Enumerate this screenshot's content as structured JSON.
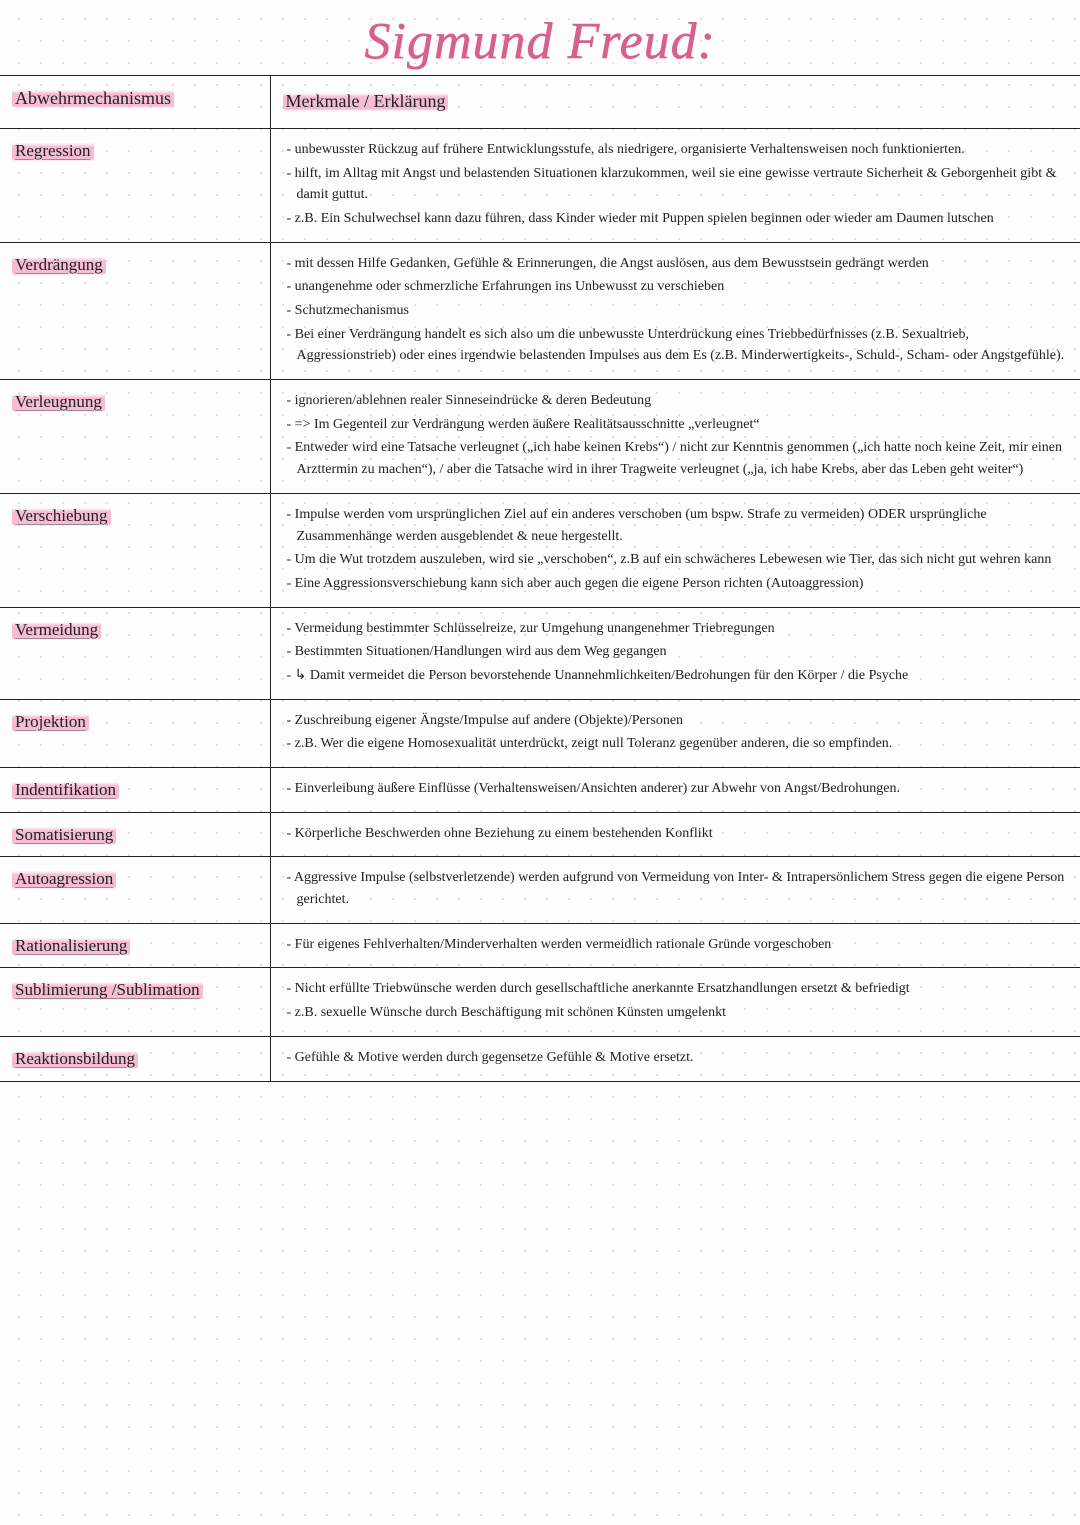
{
  "title": "Sigmund Freud:",
  "headers": {
    "left": "Abwehrmechanismus",
    "right": "Merkmale / Erklärung"
  },
  "rows": [
    {
      "term": "Regression",
      "points": [
        "unbewusster Rückzug auf frühere Entwicklungsstufe, als niedrigere, organisierte Verhaltensweisen noch funktionierten.",
        "hilft, im Alltag mit Angst und belastenden Situationen klarzukommen, weil sie eine gewisse vertraute Sicherheit & Geborgenheit gibt & damit guttut.",
        "z.B. Ein Schulwechsel kann dazu führen, dass Kinder wieder mit Puppen spielen beginnen oder wieder am Daumen lutschen"
      ]
    },
    {
      "term": "Verdrängung",
      "points": [
        "mit dessen Hilfe Gedanken, Gefühle & Erinnerungen, die Angst auslösen, aus dem Bewusstsein gedrängt werden",
        "unangenehme oder schmerzliche Erfahrungen ins Unbewusst zu verschieben",
        "Schutzmechanismus",
        "Bei einer Verdrängung handelt es sich also um die unbewusste Unterdrückung eines Triebbedürfnisses (z.B. Sexualtrieb, Aggressionstrieb) oder eines irgendwie belastenden Impulses aus dem Es (z.B. Minderwertigkeits-, Schuld-, Scham- oder Angstgefühle)."
      ]
    },
    {
      "term": "Verleugnung",
      "points": [
        "ignorieren/ablehnen realer Sinneseindrücke & deren Bedeutung",
        "=> Im Gegenteil zur Verdrängung werden äußere Realitätsausschnitte „verleugnet“",
        "Entweder wird eine Tatsache verleugnet („ich habe keinen Krebs“) / nicht zur Kenntnis genommen („ich hatte noch keine Zeit, mir einen Arzttermin zu machen“), / aber die Tatsache wird in ihrer Tragweite verleugnet („ja, ich habe Krebs, aber das Leben geht weiter“)"
      ]
    },
    {
      "term": "Verschiebung",
      "points": [
        "Impulse werden vom ursprünglichen Ziel auf ein anderes verschoben (um bspw. Strafe zu vermeiden) ODER ursprüngliche Zusammenhänge werden ausgeblendet & neue hergestellt.",
        "Um die Wut trotzdem auszuleben, wird sie „verschoben“, z.B auf ein schwächeres Lebewesen wie Tier, das sich nicht gut wehren kann",
        "Eine Aggressionsverschiebung kann sich aber auch gegen die eigene Person richten (Autoaggression)"
      ]
    },
    {
      "term": "Vermeidung",
      "points": [
        "Vermeidung bestimmter Schlüsselreize, zur Umgehung unangenehmer Triebregungen",
        "Bestimmten Situationen/Handlungen wird aus dem Weg gegangen",
        "↳ Damit vermeidet die Person bevorstehende Unannehmlichkeiten/Bedrohungen für den Körper / die Psyche"
      ]
    },
    {
      "term": "Projektion",
      "points": [
        "Zuschreibung eigener Ängste/Impulse auf andere (Objekte)/Personen",
        "z.B. Wer die eigene Homosexualität unterdrückt, zeigt null Toleranz gegenüber anderen, die so empfinden."
      ]
    },
    {
      "term": "Indentifikation",
      "points": [
        "Einverleibung äußere Einflüsse (Verhaltensweisen/Ansichten anderer) zur Abwehr von Angst/Bedrohungen."
      ]
    },
    {
      "term": "Somatisierung",
      "points": [
        "Körperliche Beschwerden ohne Beziehung zu einem bestehenden Konflikt"
      ]
    },
    {
      "term": "Autoagression",
      "points": [
        "Aggressive Impulse (selbstverletzende) werden aufgrund von Vermeidung von Inter- & Intrapersönlichem Stress gegen die eigene Person gerichtet."
      ]
    },
    {
      "term": "Rationalisierung",
      "points": [
        "Für eigenes Fehlverhalten/Minderverhalten werden vermeidlich rationale Gründe vorgeschoben"
      ]
    },
    {
      "term": "Sublimierung /Sublimation",
      "points": [
        "Nicht erfüllte Triebwünsche werden durch gesellschaftliche anerkannte Ersatzhandlungen ersetzt & befriedigt",
        "z.B. sexuelle Wünsche durch Beschäftigung mit schönen Künsten umgelenkt"
      ]
    },
    {
      "term": "Reaktionsbildung",
      "points": [
        "Gefühle & Motive werden durch gegensetze Gefühle & Motive ersetzt."
      ]
    }
  ]
}
